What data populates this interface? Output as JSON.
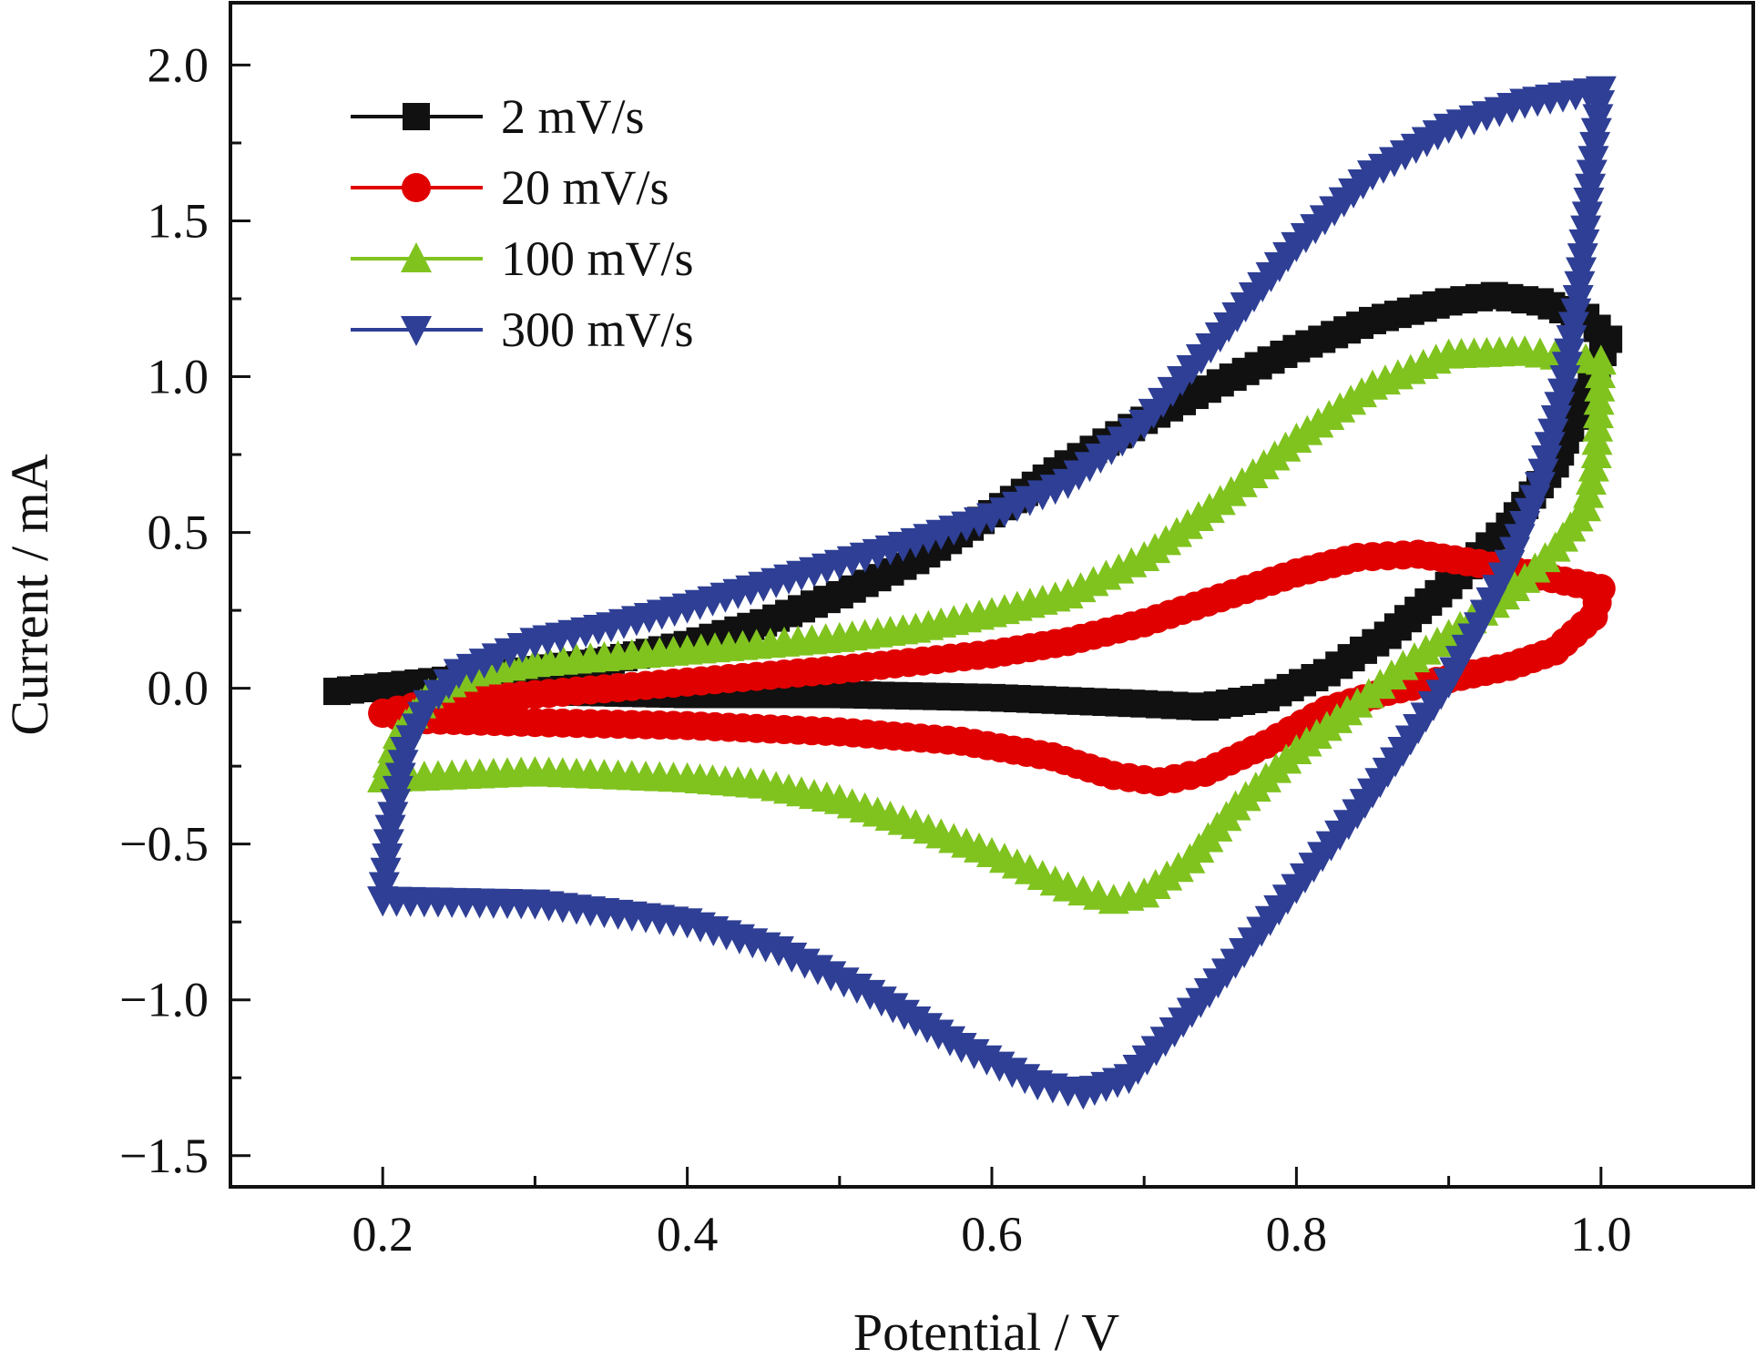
{
  "chart_data": {
    "type": "line",
    "title": "",
    "xlabel": "Potential / V",
    "ylabel": "Current / mA",
    "xlim": [
      0.1,
      1.1
    ],
    "ylim": [
      -1.6,
      2.2
    ],
    "x_ticks": [
      0.2,
      0.4,
      0.6,
      0.8,
      1.0
    ],
    "x_tick_labels": [
      "0.2",
      "0.4",
      "0.6",
      "0.8",
      "1.0"
    ],
    "y_ticks": [
      -1.5,
      -1.0,
      -0.5,
      0.0,
      0.5,
      1.0,
      1.5,
      2.0
    ],
    "y_tick_labels": [
      "−1.5",
      "−1.0",
      "−0.5",
      "0.0",
      "0.5",
      "1.0",
      "1.5",
      "2.0"
    ],
    "grid": false,
    "legend_position": "top-left",
    "series": [
      {
        "name": "2 mV/s",
        "color": "#111111",
        "marker": "square",
        "anodic": [
          [
            0.17,
            -0.01
          ],
          [
            0.25,
            0.03
          ],
          [
            0.3,
            0.06
          ],
          [
            0.35,
            0.09
          ],
          [
            0.4,
            0.14
          ],
          [
            0.45,
            0.21
          ],
          [
            0.5,
            0.3
          ],
          [
            0.55,
            0.41
          ],
          [
            0.6,
            0.56
          ],
          [
            0.65,
            0.72
          ],
          [
            0.7,
            0.86
          ],
          [
            0.75,
            0.98
          ],
          [
            0.8,
            1.09
          ],
          [
            0.85,
            1.18
          ],
          [
            0.9,
            1.24
          ],
          [
            0.93,
            1.26
          ],
          [
            0.96,
            1.24
          ],
          [
            0.99,
            1.19
          ],
          [
            1.005,
            1.12
          ]
        ],
        "cathodic": [
          [
            1.005,
            1.12
          ],
          [
            0.99,
            0.95
          ],
          [
            0.97,
            0.72
          ],
          [
            0.94,
            0.52
          ],
          [
            0.9,
            0.33
          ],
          [
            0.86,
            0.17
          ],
          [
            0.82,
            0.05
          ],
          [
            0.78,
            -0.03
          ],
          [
            0.74,
            -0.06
          ],
          [
            0.7,
            -0.05
          ],
          [
            0.65,
            -0.04
          ],
          [
            0.6,
            -0.03
          ],
          [
            0.5,
            -0.02
          ],
          [
            0.4,
            -0.02
          ],
          [
            0.3,
            -0.01
          ],
          [
            0.22,
            0.01
          ]
        ]
      },
      {
        "name": "20 mV/s",
        "color": "#e00000",
        "marker": "circle",
        "anodic": [
          [
            0.2,
            -0.08
          ],
          [
            0.23,
            -0.05
          ],
          [
            0.3,
            -0.02
          ],
          [
            0.4,
            0.02
          ],
          [
            0.5,
            0.06
          ],
          [
            0.6,
            0.11
          ],
          [
            0.65,
            0.15
          ],
          [
            0.7,
            0.21
          ],
          [
            0.75,
            0.29
          ],
          [
            0.8,
            0.37
          ],
          [
            0.84,
            0.42
          ],
          [
            0.88,
            0.43
          ],
          [
            0.92,
            0.4
          ],
          [
            0.96,
            0.36
          ],
          [
            1.0,
            0.32
          ]
        ],
        "cathodic": [
          [
            1.0,
            0.32
          ],
          [
            0.995,
            0.23
          ],
          [
            0.97,
            0.12
          ],
          [
            0.94,
            0.07
          ],
          [
            0.9,
            0.03
          ],
          [
            0.86,
            -0.01
          ],
          [
            0.82,
            -0.07
          ],
          [
            0.78,
            -0.18
          ],
          [
            0.74,
            -0.27
          ],
          [
            0.71,
            -0.3
          ],
          [
            0.68,
            -0.28
          ],
          [
            0.64,
            -0.22
          ],
          [
            0.58,
            -0.17
          ],
          [
            0.5,
            -0.14
          ],
          [
            0.4,
            -0.12
          ],
          [
            0.3,
            -0.11
          ],
          [
            0.22,
            -0.1
          ],
          [
            0.2,
            -0.08
          ]
        ]
      },
      {
        "name": "100 mV/s",
        "color": "#80c31f",
        "marker": "triangle-up",
        "anodic": [
          [
            0.2,
            -0.29
          ],
          [
            0.21,
            -0.15
          ],
          [
            0.23,
            -0.02
          ],
          [
            0.26,
            0.05
          ],
          [
            0.3,
            0.08
          ],
          [
            0.4,
            0.12
          ],
          [
            0.5,
            0.16
          ],
          [
            0.55,
            0.19
          ],
          [
            0.6,
            0.24
          ],
          [
            0.65,
            0.3
          ],
          [
            0.7,
            0.42
          ],
          [
            0.75,
            0.6
          ],
          [
            0.8,
            0.8
          ],
          [
            0.85,
            0.97
          ],
          [
            0.9,
            1.07
          ],
          [
            0.95,
            1.08
          ],
          [
            0.98,
            1.06
          ],
          [
            1.0,
            1.05
          ]
        ],
        "cathodic": [
          [
            1.0,
            1.05
          ],
          [
            0.997,
            0.75
          ],
          [
            0.99,
            0.58
          ],
          [
            0.97,
            0.45
          ],
          [
            0.95,
            0.35
          ],
          [
            0.93,
            0.27
          ],
          [
            0.9,
            0.17
          ],
          [
            0.87,
            0.07
          ],
          [
            0.84,
            -0.05
          ],
          [
            0.8,
            -0.2
          ],
          [
            0.76,
            -0.38
          ],
          [
            0.73,
            -0.55
          ],
          [
            0.7,
            -0.66
          ],
          [
            0.68,
            -0.68
          ],
          [
            0.65,
            -0.64
          ],
          [
            0.6,
            -0.53
          ],
          [
            0.55,
            -0.44
          ],
          [
            0.5,
            -0.36
          ],
          [
            0.45,
            -0.31
          ],
          [
            0.4,
            -0.29
          ],
          [
            0.3,
            -0.27
          ],
          [
            0.2,
            -0.29
          ]
        ]
      },
      {
        "name": "300 mV/s",
        "color": "#2e3f95",
        "marker": "triangle-down",
        "anodic": [
          [
            0.2,
            -0.68
          ],
          [
            0.205,
            -0.45
          ],
          [
            0.215,
            -0.2
          ],
          [
            0.23,
            -0.05
          ],
          [
            0.25,
            0.05
          ],
          [
            0.3,
            0.15
          ],
          [
            0.35,
            0.2
          ],
          [
            0.4,
            0.26
          ],
          [
            0.45,
            0.33
          ],
          [
            0.5,
            0.4
          ],
          [
            0.55,
            0.47
          ],
          [
            0.6,
            0.55
          ],
          [
            0.65,
            0.66
          ],
          [
            0.7,
            0.85
          ],
          [
            0.75,
            1.13
          ],
          [
            0.8,
            1.42
          ],
          [
            0.85,
            1.65
          ],
          [
            0.9,
            1.8
          ],
          [
            0.95,
            1.88
          ],
          [
            1.0,
            1.92
          ]
        ],
        "cathodic": [
          [
            1.0,
            1.92
          ],
          [
            0.985,
            1.25
          ],
          [
            0.975,
            0.95
          ],
          [
            0.96,
            0.65
          ],
          [
            0.94,
            0.4
          ],
          [
            0.92,
            0.2
          ],
          [
            0.9,
            0.02
          ],
          [
            0.87,
            -0.2
          ],
          [
            0.84,
            -0.4
          ],
          [
            0.8,
            -0.64
          ],
          [
            0.76,
            -0.88
          ],
          [
            0.72,
            -1.1
          ],
          [
            0.69,
            -1.25
          ],
          [
            0.66,
            -1.3
          ],
          [
            0.63,
            -1.27
          ],
          [
            0.58,
            -1.15
          ],
          [
            0.52,
            -0.98
          ],
          [
            0.46,
            -0.84
          ],
          [
            0.4,
            -0.75
          ],
          [
            0.3,
            -0.69
          ],
          [
            0.2,
            -0.68
          ]
        ]
      }
    ]
  }
}
